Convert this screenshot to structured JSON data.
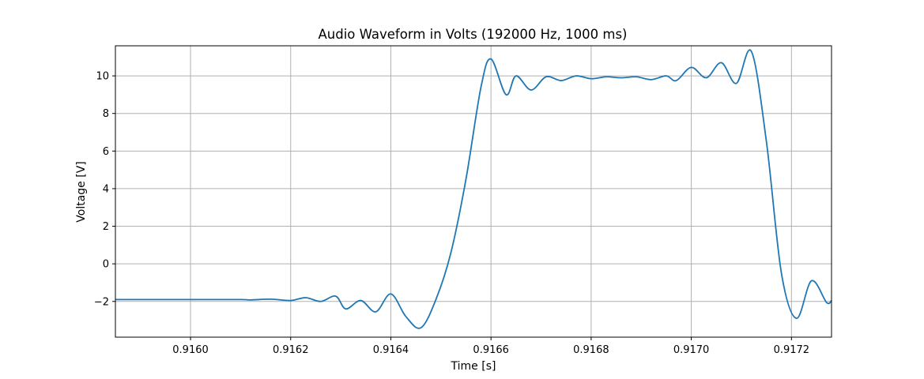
{
  "chart_data": {
    "type": "line",
    "title": "Audio Waveform in Volts (192000 Hz, 1000 ms)",
    "xlabel": "Time [s]",
    "ylabel": "Voltage [V]",
    "xlim": [
      0.91585,
      0.91728
    ],
    "ylim": [
      -3.9,
      11.6
    ],
    "xticks": [
      0.916,
      0.9162,
      0.9164,
      0.9166,
      0.9168,
      0.917,
      0.9172
    ],
    "xtick_labels": [
      "0.9160",
      "0.9162",
      "0.9164",
      "0.9166",
      "0.9168",
      "0.9170",
      "0.9172"
    ],
    "yticks": [
      -2,
      0,
      2,
      4,
      6,
      8,
      10
    ],
    "ytick_labels": [
      "−2",
      "0",
      "2",
      "4",
      "6",
      "8",
      "10"
    ],
    "grid": true,
    "series_color": "#1f77b4",
    "series": [
      {
        "x": [
          0.91585,
          0.9159,
          0.916,
          0.9161,
          0.91612,
          0.91616,
          0.9162,
          0.91623,
          0.91626,
          0.91629,
          0.91631,
          0.91634,
          0.91637,
          0.9164,
          0.91643,
          0.91646,
          0.91649,
          0.91652,
          0.91655,
          0.91658,
          0.9166,
          0.91663,
          0.91665,
          0.91668,
          0.91671,
          0.91674,
          0.91677,
          0.9168,
          0.91683,
          0.91686,
          0.91689,
          0.91692,
          0.91695,
          0.91697,
          0.917,
          0.91703,
          0.91706,
          0.91709,
          0.91712,
          0.91715,
          0.91718,
          0.91721,
          0.91724,
          0.91727,
          0.91728
        ],
        "y": [
          -1.9,
          -1.9,
          -1.9,
          -1.9,
          -1.92,
          -1.88,
          -1.95,
          -1.8,
          -2.0,
          -1.72,
          -2.4,
          -1.95,
          -2.55,
          -1.6,
          -2.8,
          -3.4,
          -1.9,
          0.6,
          4.5,
          9.4,
          10.9,
          9.0,
          10.0,
          9.25,
          9.95,
          9.75,
          10.0,
          9.85,
          9.95,
          9.9,
          9.95,
          9.8,
          10.0,
          9.75,
          10.45,
          9.9,
          10.7,
          9.6,
          11.3,
          6.5,
          -0.5,
          -2.9,
          -0.9,
          -2.05,
          -1.95
        ]
      }
    ]
  }
}
